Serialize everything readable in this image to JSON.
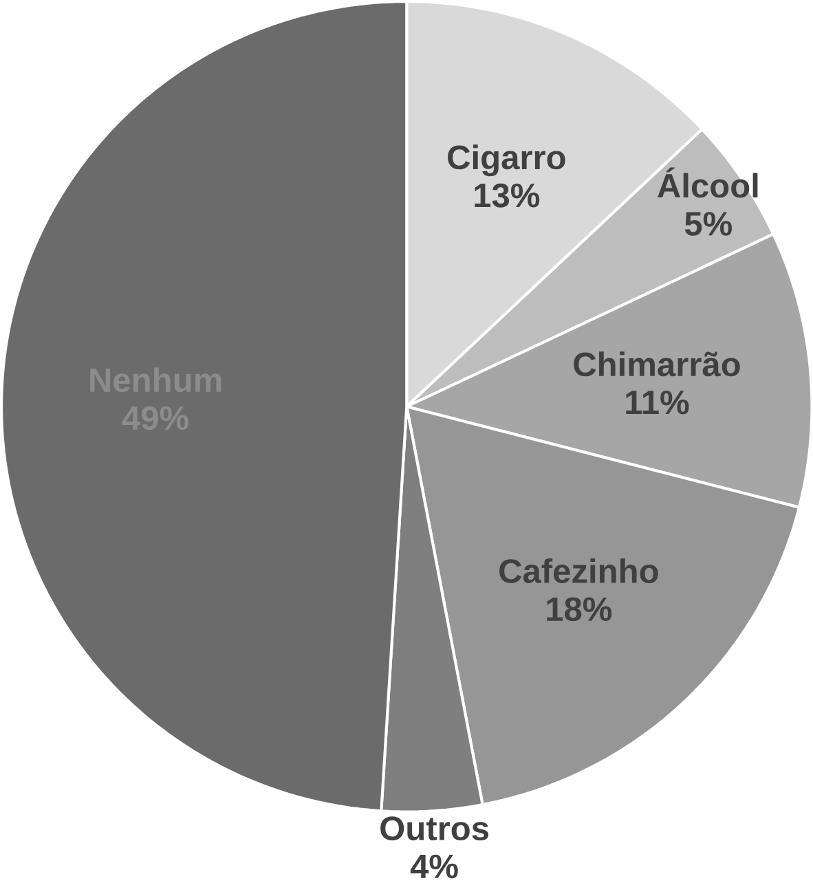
{
  "chart_data": {
    "type": "pie",
    "categories": [
      "Cigarro",
      "Álcool",
      "Chimarrão",
      "Cafezinho",
      "Outros",
      "Nenhum"
    ],
    "values": [
      13,
      5,
      11,
      18,
      4,
      49
    ],
    "value_labels": [
      "13%",
      "5%",
      "11%",
      "18%",
      "4%",
      "49%"
    ],
    "colors": [
      "#d9d9d9",
      "#bdbdbd",
      "#a6a6a6",
      "#969696",
      "#7f7f7f",
      "#6b6b6b"
    ]
  }
}
